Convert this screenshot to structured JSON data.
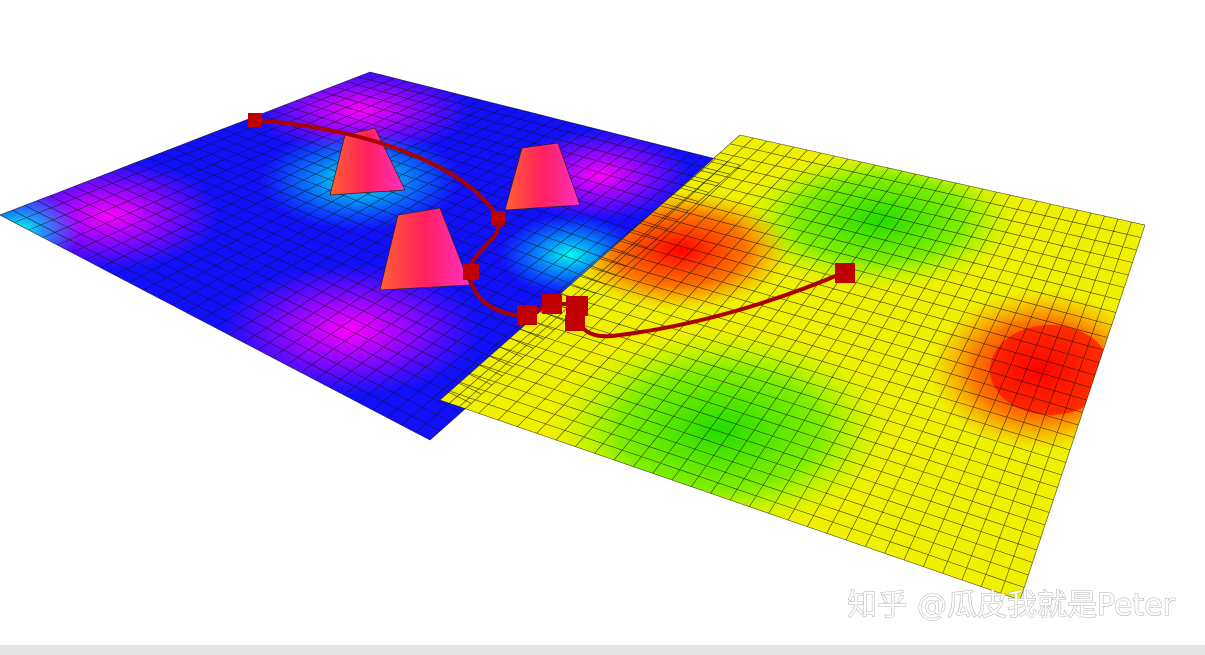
{
  "watermark": "知乎 @瓜皮我就是Peter"
}
